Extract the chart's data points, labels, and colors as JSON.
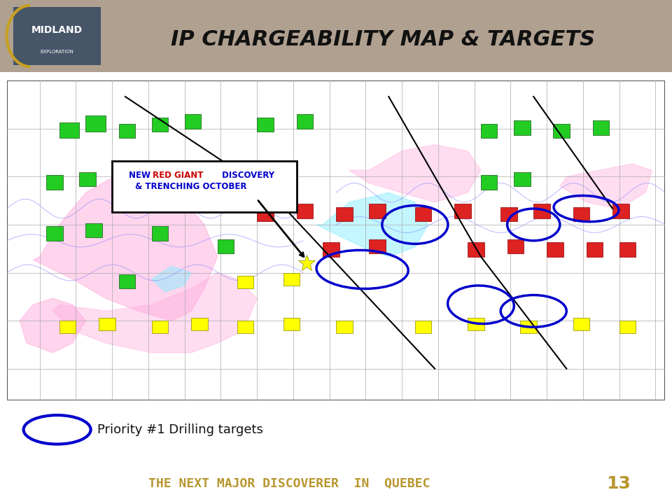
{
  "title": "IP CHARGEABILITY MAP & TARGETS",
  "footer_text": "THE NEXT MAJOR DISCOVERER  IN  QUEBEC",
  "page_number": "13",
  "legend_text": "Priority #1 Drilling targets",
  "header_bg": "#b0a090",
  "footer_bg": "#1a3557",
  "footer_gold": "#b8962e",
  "title_color": "#111111",
  "white": "#ffffff",
  "blue_ellipse_color": "#0000cc",
  "annotation_bg": "#ffffff",
  "annotation_border": "#000000",
  "star_color": "#ffff00",
  "pink_color": "#ffaadd",
  "cyan_color": "#88eeff",
  "grid_color": "#aaaaaa",
  "blue_contour": "#8888ff",
  "green_rect": "#22cc22",
  "red_rect": "#dd2222",
  "yellow_rect": "#ffff00",
  "logo_bg": "#1a3557",
  "logo_gold": "#c8a020"
}
